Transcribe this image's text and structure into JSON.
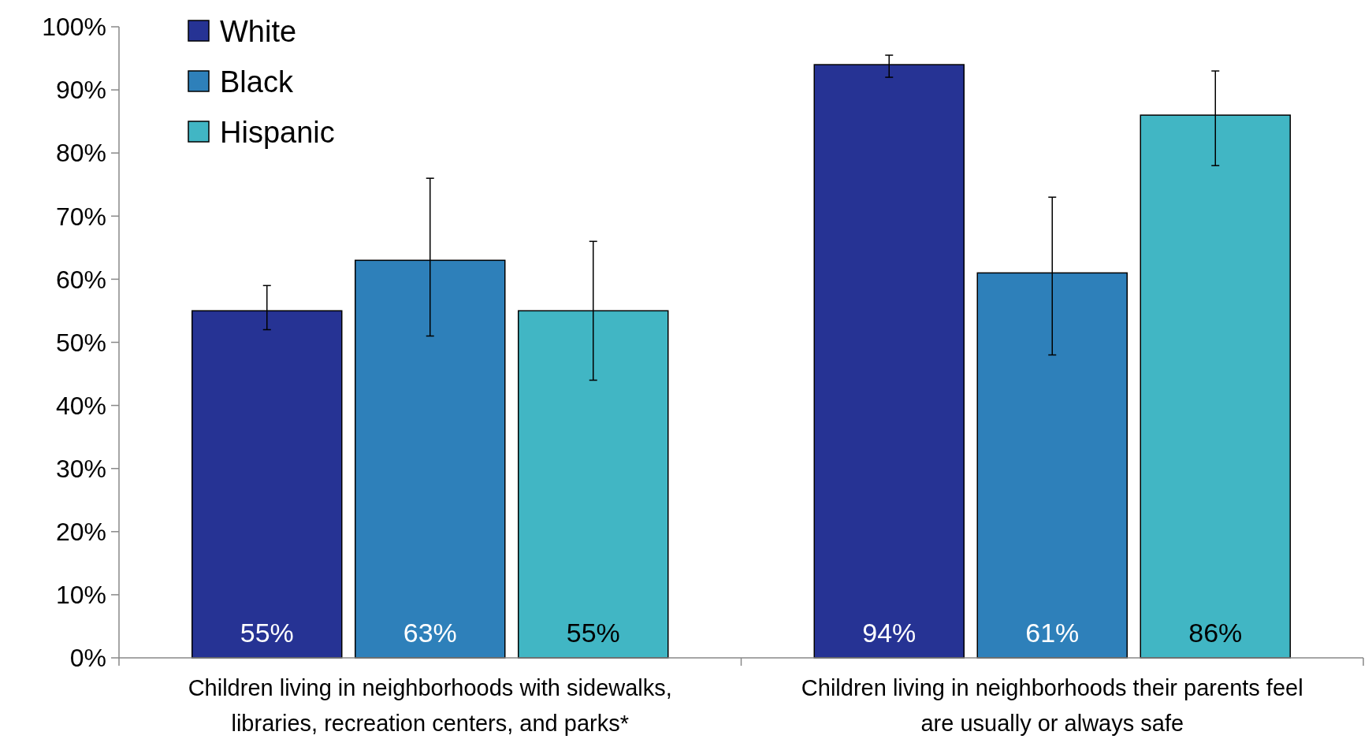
{
  "chart_data": {
    "type": "bar",
    "categories": [
      "Children living in neighborhoods with sidewalks, libraries, recreation centers, and parks*",
      "Children living in neighborhoods their parents feel are usually or always safe"
    ],
    "series": [
      {
        "name": "White",
        "color": "#263394",
        "values": [
          55,
          94
        ],
        "value_labels": [
          "55%",
          "94%"
        ],
        "errors": [
          [
            52,
            59
          ],
          [
            92,
            95.5
          ]
        ]
      },
      {
        "name": "Black",
        "color": "#2e80ba",
        "values": [
          63,
          61
        ],
        "value_labels": [
          "63%",
          "61%"
        ],
        "errors": [
          [
            51,
            76
          ],
          [
            48,
            73
          ]
        ]
      },
      {
        "name": "Hispanic",
        "color": "#41b6c4",
        "values": [
          55,
          86
        ],
        "value_labels": [
          "55%",
          "86%"
        ],
        "errors": [
          [
            44,
            66
          ],
          [
            78,
            93
          ]
        ]
      }
    ],
    "ylim": [
      0,
      100
    ],
    "yticks": [
      {
        "value": 0,
        "label": "0%"
      },
      {
        "value": 10,
        "label": "10%"
      },
      {
        "value": 20,
        "label": "20%"
      },
      {
        "value": 30,
        "label": "30%"
      },
      {
        "value": 40,
        "label": "40%"
      },
      {
        "value": 50,
        "label": "50%"
      },
      {
        "value": 60,
        "label": "60%"
      },
      {
        "value": 70,
        "label": "70%"
      },
      {
        "value": 80,
        "label": "80%"
      },
      {
        "value": 90,
        "label": "90%"
      },
      {
        "value": 100,
        "label": "100%"
      }
    ],
    "legend": "top left",
    "grid": false
  }
}
